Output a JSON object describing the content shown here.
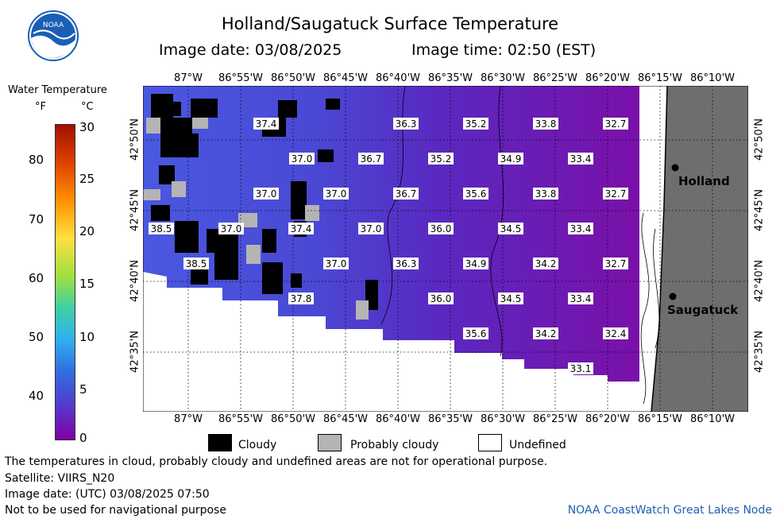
{
  "header": {
    "title": "Holland/Saugatuck Surface Temperature",
    "image_date": "Image date: 03/08/2025",
    "image_time": "Image time: 02:50 (EST)"
  },
  "logo": {
    "text": "NOAA"
  },
  "colorbar": {
    "title": "Water Temperature",
    "unit_f": "°F",
    "unit_c": "°C",
    "f_ticks": [
      "80",
      "70",
      "60",
      "50",
      "40"
    ],
    "c_ticks": [
      "30",
      "25",
      "20",
      "15",
      "10",
      "5",
      "0"
    ]
  },
  "axes": {
    "lon_labels": [
      "87°W",
      "86°55'W",
      "86°50'W",
      "86°45'W",
      "86°40'W",
      "86°35'W",
      "86°30'W",
      "86°25'W",
      "86°20'W",
      "86°15'W",
      "86°10'W"
    ],
    "lat_labels": [
      "42°50'N",
      "42°45'N",
      "42°40'N",
      "42°35'N"
    ]
  },
  "places": [
    {
      "name": "Holland"
    },
    {
      "name": "Saugatuck"
    }
  ],
  "temperatures": [
    "37.4",
    "36.3",
    "35.2",
    "33.8",
    "32.7",
    "37.0",
    "36.7",
    "35.2",
    "34.9",
    "33.4",
    "37.0",
    "37.0",
    "36.7",
    "35.6",
    "33.8",
    "32.7",
    "38.5",
    "37.0",
    "37.4",
    "37.0",
    "36.0",
    "34.5",
    "33.4",
    "38.5",
    "37.0",
    "36.3",
    "34.9",
    "34.2",
    "32.7",
    "37.8",
    "36.0",
    "34.5",
    "33.4",
    "35.6",
    "34.2",
    "32.4",
    "33.1"
  ],
  "legend": {
    "cloudy": "Cloudy",
    "probably_cloudy": "Probably cloudy",
    "undefined": "Undefined"
  },
  "footer": {
    "disclaimer": "The temperatures in cloud, probably cloudy and undefined areas are not for operational purpose.",
    "satellite": "Satellite: VIIRS_N20",
    "utc_date": "Image date: (UTC) 03/08/2025  07:50",
    "nav": "Not to be used for navigational purpose",
    "credit": "NOAA CoastWatch Great Lakes Node"
  },
  "colors": {
    "land": "#6e6e6e",
    "cloud": "#000000",
    "probably_cloudy": "#b4b4b4",
    "water_warm": "#4a50d8",
    "water_cold": "#7a10a8"
  }
}
